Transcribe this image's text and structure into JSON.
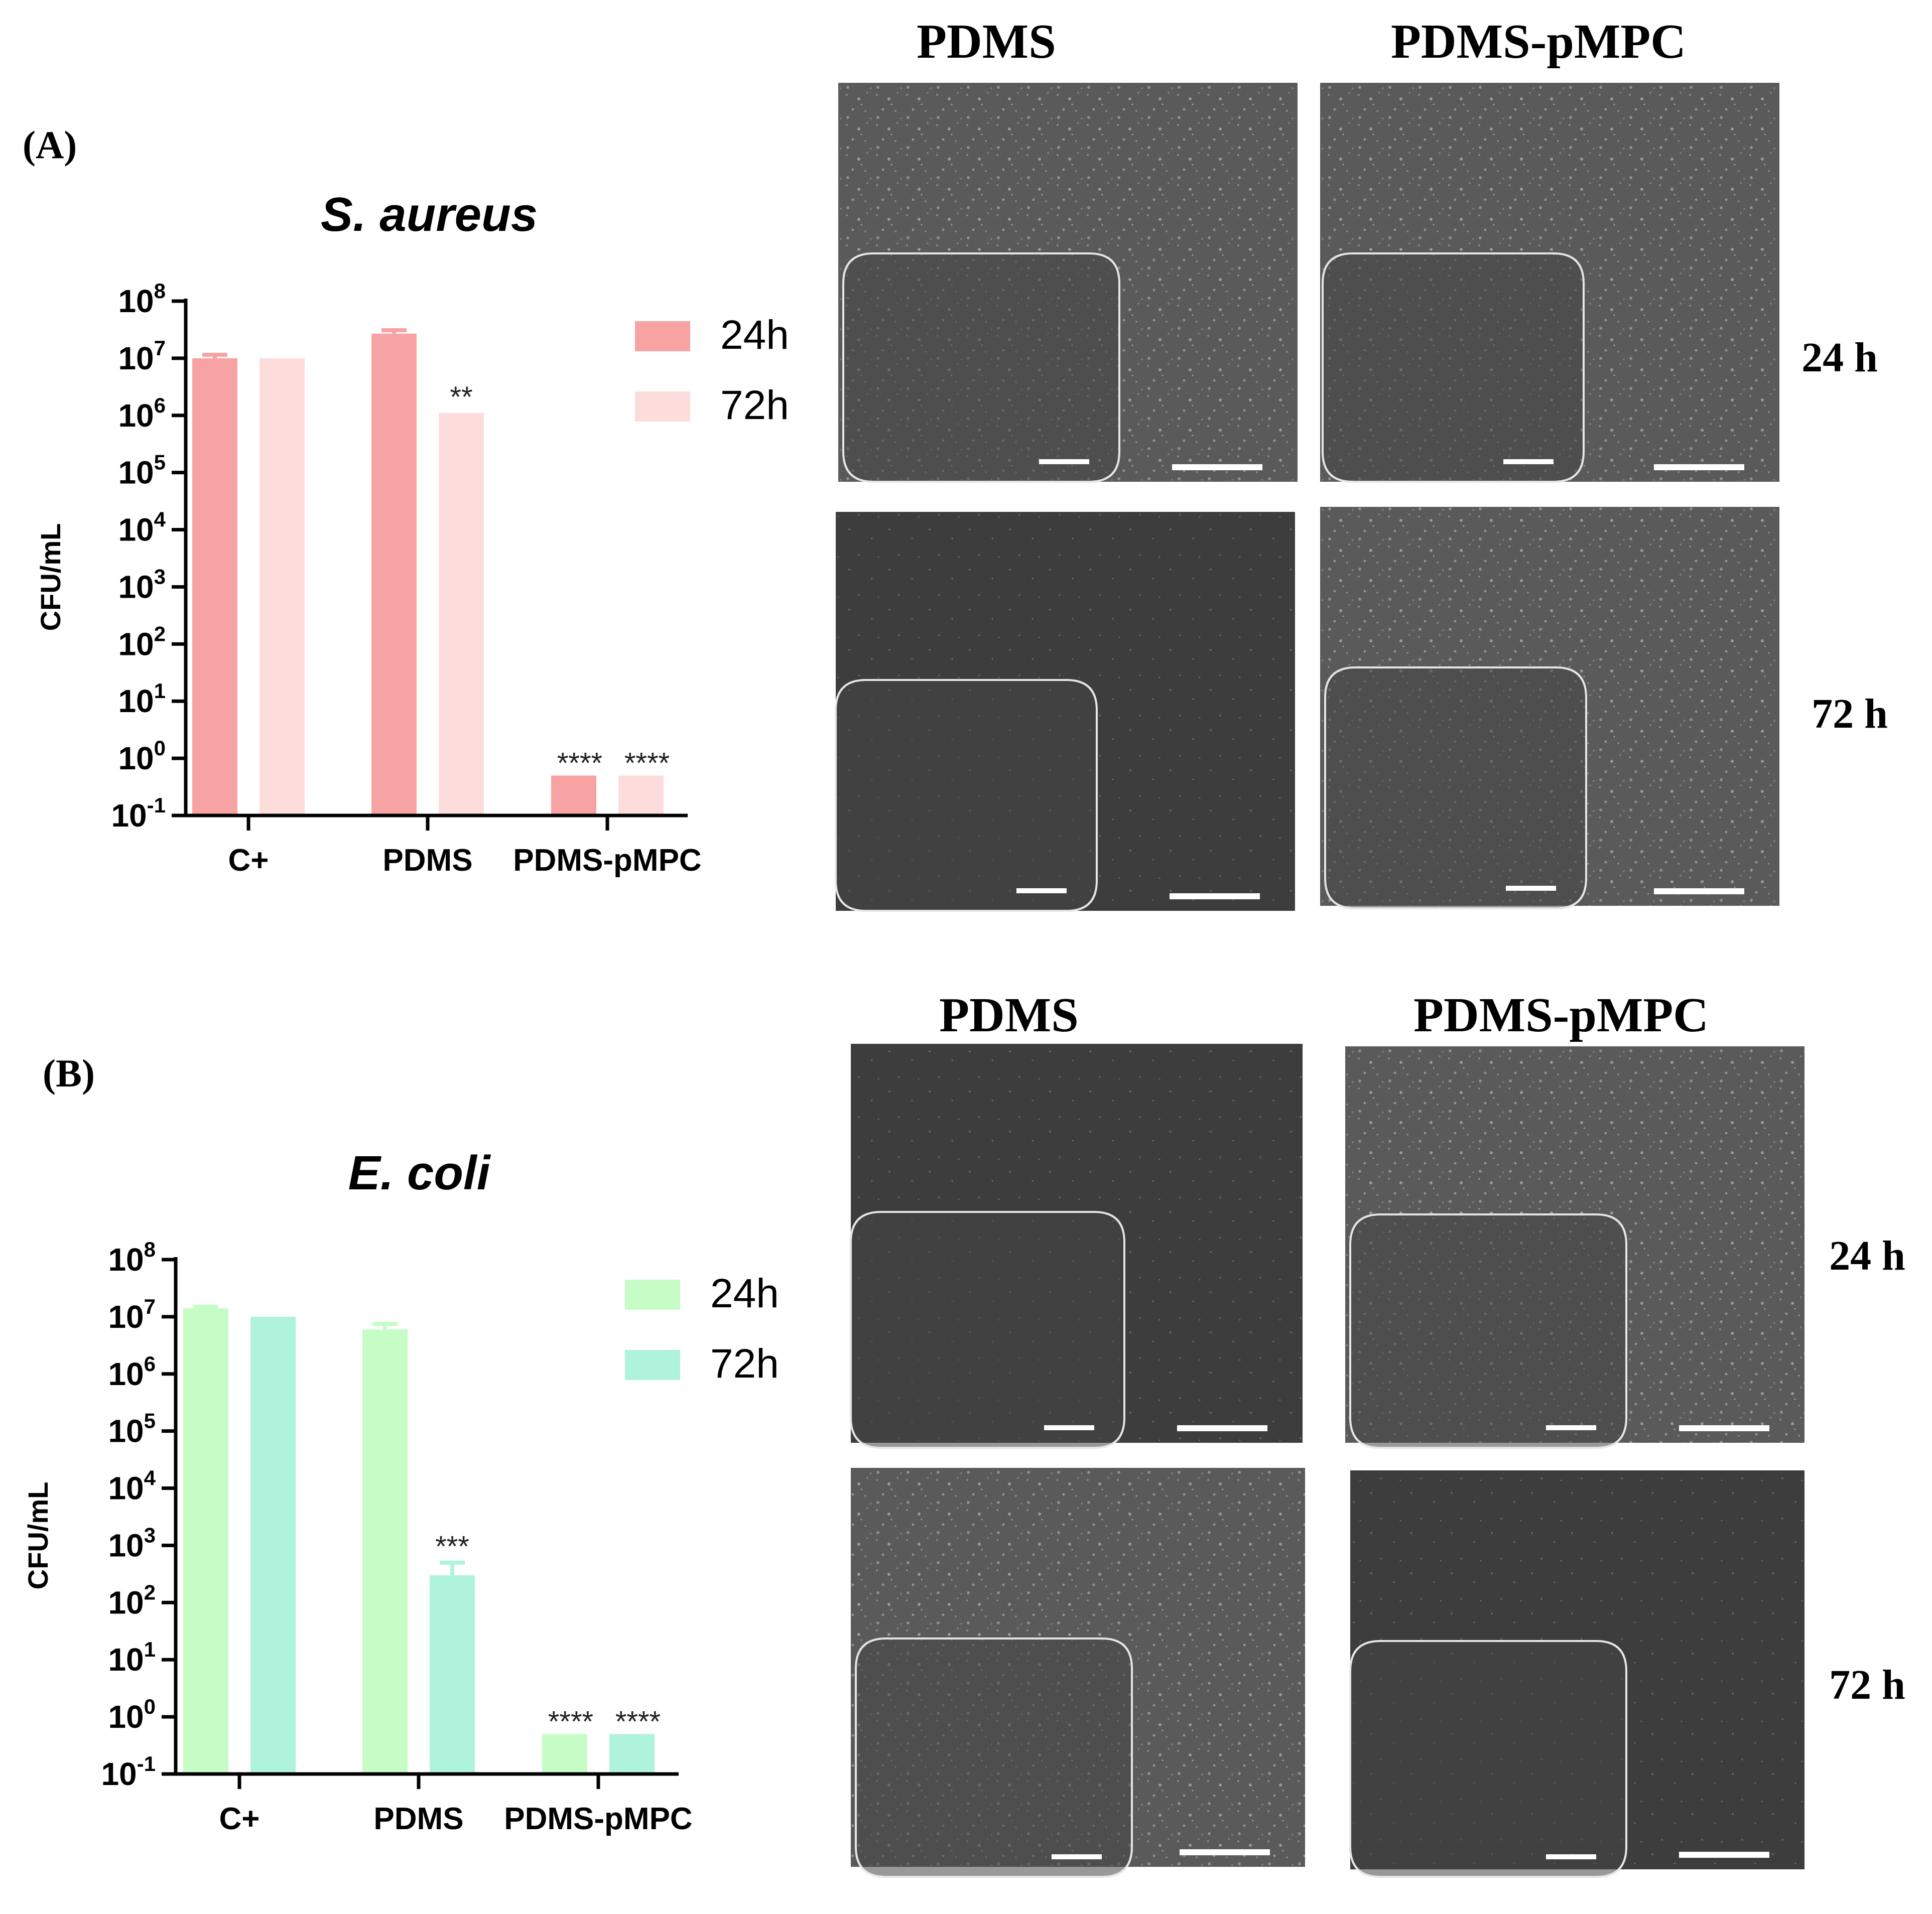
{
  "panels": [
    {
      "label": "(A)",
      "chart_data": {
        "type": "bar",
        "title": "S. aureus",
        "xlabel": "",
        "ylabel": "CFU/mL",
        "yscale": "log",
        "ylim": [
          0.1,
          100000000
        ],
        "yticks": [
          {
            "base": "10",
            "exp": "8"
          },
          {
            "base": "10",
            "exp": "7"
          },
          {
            "base": "10",
            "exp": "6"
          },
          {
            "base": "10",
            "exp": "5"
          },
          {
            "base": "10",
            "exp": "4"
          },
          {
            "base": "10",
            "exp": "3"
          },
          {
            "base": "10",
            "exp": "2"
          },
          {
            "base": "10",
            "exp": "1"
          },
          {
            "base": "10",
            "exp": "0"
          },
          {
            "base": "10",
            "exp": "-1"
          }
        ],
        "categories": [
          "C+",
          "PDMS",
          "PDMS-pMPC"
        ],
        "legend_position": "right",
        "series": [
          {
            "name": "24h",
            "color": "#f8a3a3",
            "values": [
              10000000,
              27000000,
              0.5
            ],
            "errors": [
              1500000,
              4000000,
              0
            ],
            "significance": [
              "",
              "",
              "****"
            ]
          },
          {
            "name": "72h",
            "color": "#fddcdc",
            "values": [
              10000000,
              1100000,
              0.5
            ],
            "errors": [
              0,
              0,
              0
            ],
            "significance": [
              "",
              "**",
              "****"
            ]
          }
        ]
      },
      "micrographs": {
        "columns": [
          "PDMS",
          "PDMS-pMPC"
        ],
        "rows": [
          "24 h",
          "72 h"
        ]
      }
    },
    {
      "label": "(B)",
      "chart_data": {
        "type": "bar",
        "title": "E. coli",
        "xlabel": "",
        "ylabel": "CFU/mL",
        "yscale": "log",
        "ylim": [
          0.1,
          100000000
        ],
        "yticks": [
          {
            "base": "10",
            "exp": "8"
          },
          {
            "base": "10",
            "exp": "7"
          },
          {
            "base": "10",
            "exp": "6"
          },
          {
            "base": "10",
            "exp": "5"
          },
          {
            "base": "10",
            "exp": "4"
          },
          {
            "base": "10",
            "exp": "3"
          },
          {
            "base": "10",
            "exp": "2"
          },
          {
            "base": "10",
            "exp": "1"
          },
          {
            "base": "10",
            "exp": "0"
          },
          {
            "base": "10",
            "exp": "-1"
          }
        ],
        "categories": [
          "C+",
          "PDMS",
          "PDMS-pMPC"
        ],
        "legend_position": "right",
        "series": [
          {
            "name": "24h",
            "color": "#c6fcc6",
            "values": [
              14000000,
              6000000,
              0.5
            ],
            "errors": [
              1000000,
              1500000,
              0
            ],
            "significance": [
              "",
              "",
              "****"
            ]
          },
          {
            "name": "72h",
            "color": "#b0f3dc",
            "values": [
              10000000,
              300,
              0.5
            ],
            "errors": [
              0,
              200,
              0
            ],
            "significance": [
              "",
              "***",
              "****"
            ]
          }
        ]
      },
      "micrographs": {
        "columns": [
          "PDMS",
          "PDMS-pMPC"
        ],
        "rows": [
          "24 h",
          "72 h"
        ]
      }
    }
  ]
}
